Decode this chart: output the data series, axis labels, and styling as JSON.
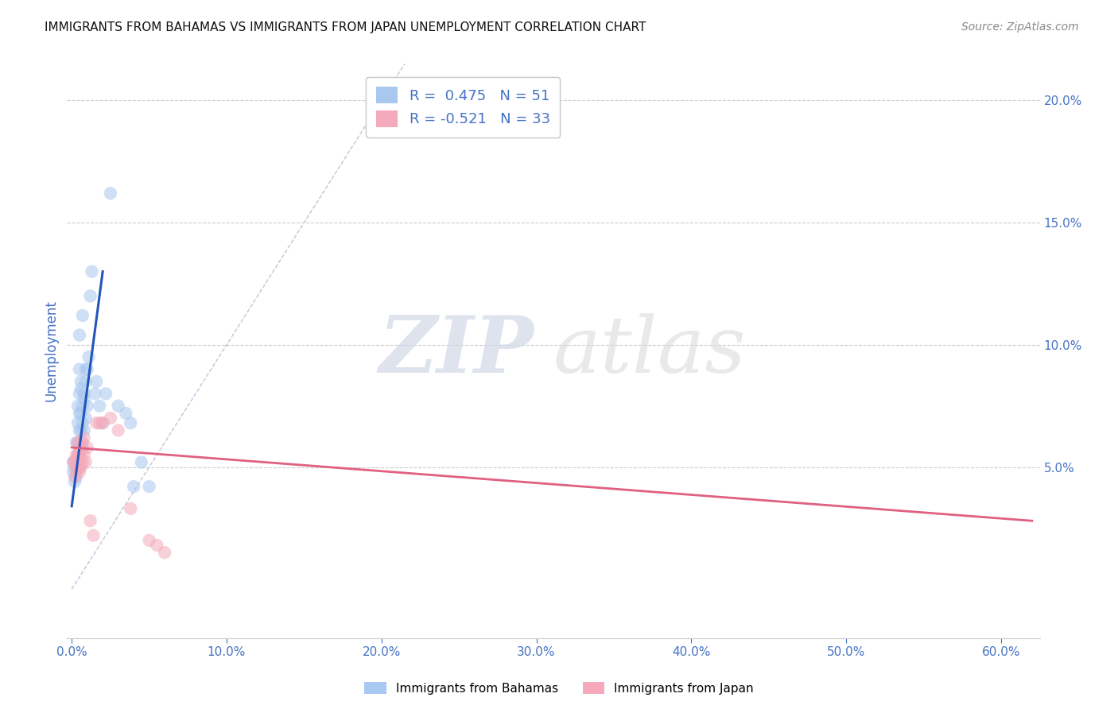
{
  "title": "IMMIGRANTS FROM BAHAMAS VS IMMIGRANTS FROM JAPAN UNEMPLOYMENT CORRELATION CHART",
  "source": "Source: ZipAtlas.com",
  "ylabel": "Unemployment",
  "right_ytick_labels": [
    "20.0%",
    "15.0%",
    "10.0%",
    "5.0%"
  ],
  "right_ytick_values": [
    0.2,
    0.15,
    0.1,
    0.05
  ],
  "xtick_labels": [
    "0.0%",
    "10.0%",
    "20.0%",
    "30.0%",
    "40.0%",
    "50.0%",
    "60.0%"
  ],
  "xtick_values": [
    0.0,
    0.1,
    0.2,
    0.3,
    0.4,
    0.5,
    0.6
  ],
  "xlim": [
    -0.003,
    0.625
  ],
  "ylim": [
    -0.02,
    0.215
  ],
  "legend_entries": [
    {
      "label": "R =  0.475   N = 51",
      "color": "#A8C8F0"
    },
    {
      "label": "R = -0.521   N = 33",
      "color": "#F4AABB"
    }
  ],
  "blue_scatter_x": [
    0.001,
    0.001,
    0.002,
    0.002,
    0.003,
    0.003,
    0.003,
    0.004,
    0.004,
    0.004,
    0.004,
    0.004,
    0.005,
    0.005,
    0.005,
    0.005,
    0.005,
    0.005,
    0.006,
    0.006,
    0.006,
    0.006,
    0.007,
    0.007,
    0.007,
    0.008,
    0.008,
    0.009,
    0.009,
    0.01,
    0.01,
    0.011,
    0.012,
    0.013,
    0.015,
    0.016,
    0.018,
    0.02,
    0.022,
    0.025,
    0.03,
    0.035,
    0.038,
    0.04,
    0.045,
    0.05,
    0.005,
    0.006,
    0.007,
    0.008,
    0.009
  ],
  "blue_scatter_y": [
    0.052,
    0.048,
    0.044,
    0.05,
    0.046,
    0.052,
    0.06,
    0.05,
    0.055,
    0.06,
    0.068,
    0.075,
    0.05,
    0.058,
    0.065,
    0.072,
    0.08,
    0.09,
    0.058,
    0.065,
    0.072,
    0.085,
    0.06,
    0.068,
    0.075,
    0.065,
    0.08,
    0.07,
    0.085,
    0.075,
    0.09,
    0.095,
    0.12,
    0.13,
    0.08,
    0.085,
    0.075,
    0.068,
    0.08,
    0.162,
    0.075,
    0.072,
    0.068,
    0.042,
    0.052,
    0.042,
    0.104,
    0.082,
    0.112,
    0.078,
    0.09
  ],
  "pink_scatter_x": [
    0.001,
    0.002,
    0.002,
    0.003,
    0.003,
    0.004,
    0.004,
    0.004,
    0.004,
    0.005,
    0.005,
    0.005,
    0.005,
    0.006,
    0.006,
    0.006,
    0.007,
    0.007,
    0.008,
    0.008,
    0.009,
    0.01,
    0.012,
    0.014,
    0.016,
    0.018,
    0.02,
    0.025,
    0.03,
    0.038,
    0.05,
    0.055,
    0.06
  ],
  "pink_scatter_y": [
    0.052,
    0.046,
    0.052,
    0.048,
    0.055,
    0.05,
    0.055,
    0.06,
    0.05,
    0.052,
    0.058,
    0.048,
    0.055,
    0.05,
    0.056,
    0.06,
    0.052,
    0.058,
    0.055,
    0.062,
    0.052,
    0.058,
    0.028,
    0.022,
    0.068,
    0.068,
    0.068,
    0.07,
    0.065,
    0.033,
    0.02,
    0.018,
    0.015
  ],
  "blue_line_x": [
    0.0,
    0.02
  ],
  "blue_line_y": [
    0.034,
    0.13
  ],
  "pink_line_x": [
    0.0,
    0.62
  ],
  "pink_line_y": [
    0.058,
    0.028
  ],
  "ref_line_x": [
    0.0,
    0.215
  ],
  "ref_line_y": [
    0.0,
    0.215
  ],
  "watermark_zip": "ZIP",
  "watermark_atlas": "atlas",
  "title_fontsize": 11,
  "source_fontsize": 10,
  "axis_color": "#4472C4",
  "scatter_blue": "#A8C8F0",
  "scatter_pink": "#F4AABB",
  "line_blue": "#2255BB",
  "line_pink": "#E06080",
  "ref_line_color": "#AAAACC",
  "background_color": "#FFFFFF",
  "legend_label_bahamas": "Immigrants from Bahamas",
  "legend_label_japan": "Immigrants from Japan"
}
